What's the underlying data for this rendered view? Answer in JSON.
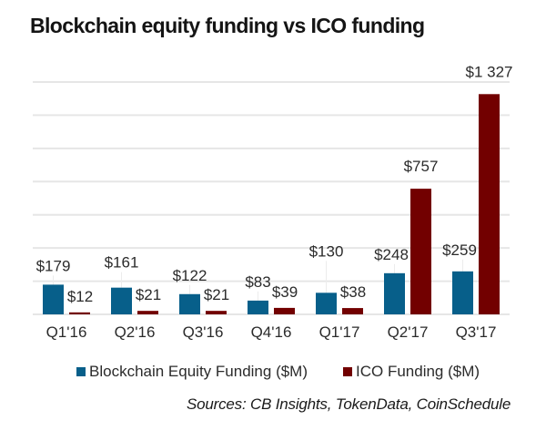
{
  "chart_data": {
    "type": "bar",
    "title": "Blockchain equity funding vs ICO funding",
    "xlabel": "",
    "ylabel": "",
    "ylim": [
      0,
      1400
    ],
    "grid": true,
    "grid_step": 200,
    "categories": [
      "Q1'16",
      "Q2'16",
      "Q3'16",
      "Q4'16",
      "Q1'17",
      "Q2'17",
      "Q3'17"
    ],
    "series": [
      {
        "name": "Blockchain Equity Funding ($M)",
        "color": "#075f8a",
        "values": [
          179,
          161,
          122,
          83,
          130,
          248,
          259
        ],
        "labels": [
          "$179",
          "$161",
          "$122",
          "$83",
          "$130",
          "$248",
          "$259"
        ]
      },
      {
        "name": "ICO Funding ($M)",
        "color": "#720000",
        "values": [
          12,
          21,
          21,
          39,
          38,
          757,
          1327
        ],
        "labels": [
          "$12",
          "$21",
          "$21",
          "$39",
          "$38",
          "$757",
          "$1 327"
        ]
      }
    ],
    "legend_position": "bottom",
    "source": "Sources: CB Insights, TokenData, CoinSchedule"
  }
}
